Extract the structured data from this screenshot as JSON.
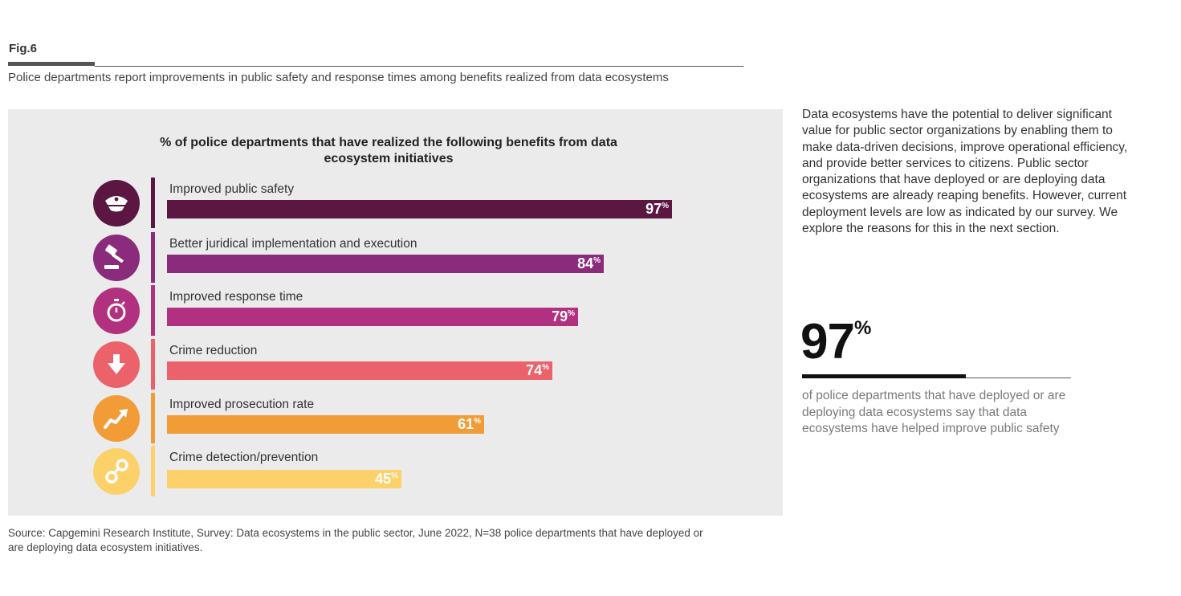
{
  "figure": {
    "label": "Fig.6",
    "caption": "Police departments report improvements in public safety and response times among benefits realized from data ecosystems"
  },
  "chart_data": {
    "type": "bar",
    "orientation": "horizontal",
    "title": "% of police departments that have realized the following benefits from data ecosystem initiatives",
    "categories": [
      "Improved public safety",
      "Better juridical implementation and execution",
      "Improved response time",
      "Crime reduction",
      "Improved prosecution rate",
      "Crime detection/prevention"
    ],
    "values": [
      97,
      84,
      79,
      74,
      61,
      45
    ],
    "value_labels": [
      "97",
      "84",
      "79",
      "74",
      "61",
      "45"
    ],
    "unit": "%",
    "colors": [
      "#5b1641",
      "#8a2b7c",
      "#b13080",
      "#eb626a",
      "#f29c37",
      "#fdd16a"
    ],
    "icons": [
      "police-cap-icon",
      "gavel-icon",
      "stopwatch-icon",
      "down-arrow-icon",
      "upward-trend-icon",
      "handcuffs-icon"
    ],
    "xlim": [
      0,
      100
    ]
  },
  "source": "Source: Capgemini Research Institute, Survey: Data ecosystems in the public sector, June 2022, N=38 police departments that have deployed or are deploying data ecosystem initiatives.",
  "sidebar": {
    "paragraph": "Data ecosystems have the potential to deliver significant value for public sector organizations by enabling them to make data-driven decisions, improve operational efficiency, and provide better services to citizens. Public sector organizations that have deployed or are deploying data ecosystems are already reaping benefits. However, current deployment levels are low as indicated by our survey. We explore the reasons for this in the next section.",
    "stat_value": "97",
    "stat_unit": "%",
    "stat_description": "of police departments that have deployed or are deploying data ecosystems say that data ecosystems have helped improve public safety"
  }
}
